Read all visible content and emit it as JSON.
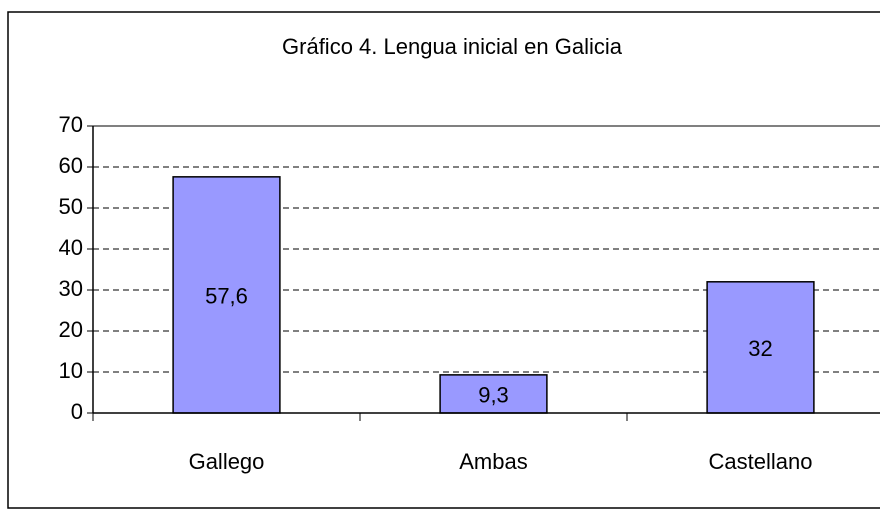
{
  "chart_data": {
    "type": "bar",
    "title": "Gráfico 4. Lengua inicial en Galicia",
    "categories": [
      "Gallego",
      "Ambas",
      "Castellano"
    ],
    "values": [
      57.6,
      9.3,
      32
    ],
    "value_labels": [
      "57,6",
      "9,3",
      "32"
    ],
    "color": "#9999ff",
    "ylim": [
      0,
      70
    ],
    "yticks": [
      0,
      10,
      20,
      30,
      40,
      50,
      60,
      70
    ],
    "grid": true
  }
}
